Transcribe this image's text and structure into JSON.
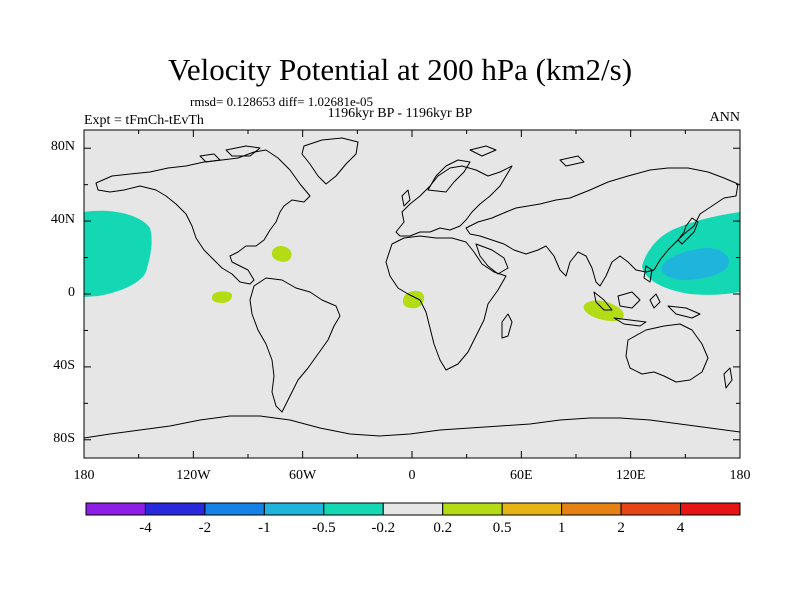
{
  "map": {
    "title": "Velocity Potential at 200 hPa (km2/s)",
    "stats": "rmsd= 0.128653 diff= 1.02681e-05",
    "period": "1196kyr BP - 1196kyr BP",
    "experiment": "Expt = tFmCh-tEvTh",
    "season": "ANN",
    "projection": "cylindrical equidistant",
    "lon_range": [
      -180,
      180
    ],
    "lat_range": [
      -90,
      90
    ],
    "lat_ticks": [
      {
        "value": 80,
        "label": "80N"
      },
      {
        "value": 40,
        "label": "40N"
      },
      {
        "value": 0,
        "label": "0"
      },
      {
        "value": -40,
        "label": "40S"
      },
      {
        "value": -80,
        "label": "80S"
      }
    ],
    "lon_ticks": [
      {
        "value": -180,
        "label": "180"
      },
      {
        "value": -120,
        "label": "120W"
      },
      {
        "value": -60,
        "label": "60W"
      },
      {
        "value": 0,
        "label": "0"
      },
      {
        "value": 60,
        "label": "60E"
      },
      {
        "value": 120,
        "label": "120E"
      },
      {
        "value": 180,
        "label": "180"
      }
    ],
    "colors": {
      "background": "#e6e6e6",
      "coast": "#000000",
      "neg_05_02": "#14d8b4",
      "neg_1_05": "#1eb4dc",
      "pos_02_05": "#b4dc14"
    }
  },
  "colorbar": {
    "colors": [
      "#8c1ee6",
      "#2828dc",
      "#1482e6",
      "#1eb4dc",
      "#14d8b4",
      "#e6e6e6",
      "#b4dc14",
      "#e6b414",
      "#e68214",
      "#e64614",
      "#e61414"
    ],
    "labels": [
      "-4",
      "-2",
      "-1",
      "-0.5",
      "-0.2",
      "0.2",
      "0.5",
      "1",
      "2",
      "4"
    ]
  }
}
